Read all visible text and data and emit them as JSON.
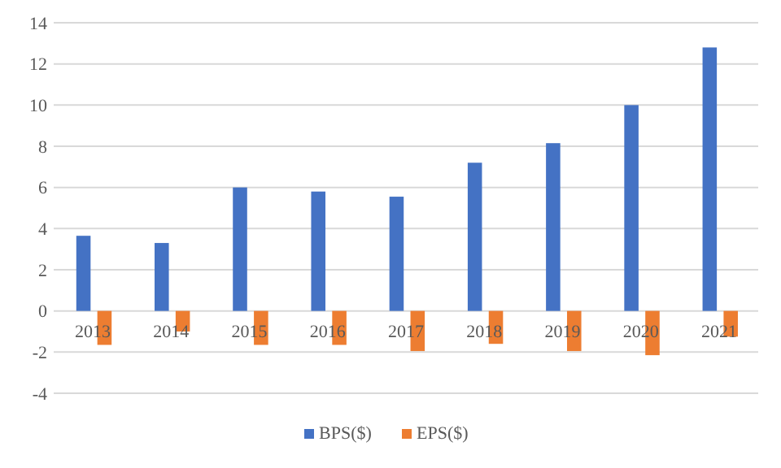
{
  "chart_data": {
    "type": "bar",
    "categories": [
      "2013",
      "2014",
      "2015",
      "2016",
      "2017",
      "2018",
      "2019",
      "2020",
      "2021"
    ],
    "series": [
      {
        "name": "BPS($)",
        "color": "#4472c4",
        "values": [
          3.65,
          3.3,
          6.0,
          5.8,
          5.55,
          7.2,
          8.15,
          10.0,
          12.8
        ]
      },
      {
        "name": "EPS($)",
        "color": "#ed7d31",
        "values": [
          -1.65,
          -1.0,
          -1.65,
          -1.65,
          -1.95,
          -1.6,
          -1.95,
          -2.15,
          -1.25
        ]
      }
    ],
    "ylim": [
      -4,
      14
    ],
    "yticks": [
      -4,
      -2,
      0,
      2,
      4,
      6,
      8,
      10,
      12,
      14
    ],
    "grid": "y",
    "legend": "bottom"
  }
}
